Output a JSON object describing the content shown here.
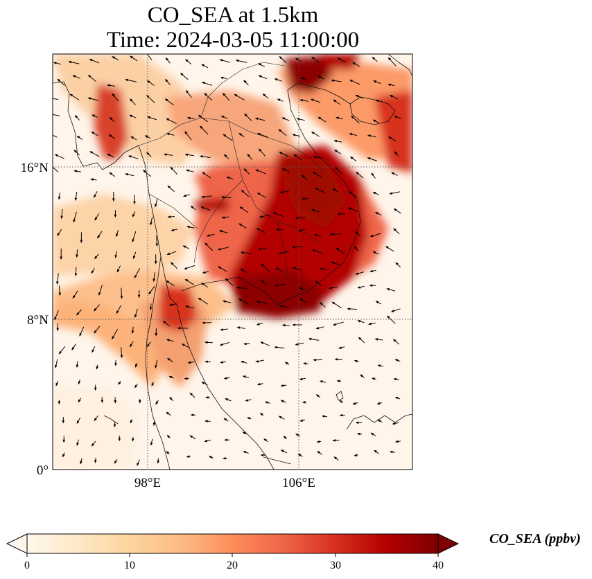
{
  "title": {
    "line1": "CO_SEA at 1.5km",
    "line2": "Time: 2024-03-05 11:00:00"
  },
  "map": {
    "projection": "PlateCarree",
    "lon_range": [
      93,
      112
    ],
    "lat_range": [
      0,
      22
    ],
    "gridlines": {
      "lons": [
        98,
        106
      ],
      "lats": [
        0,
        8,
        16
      ],
      "style": "dotted"
    },
    "lon_tick_labels": [
      "98°E",
      "106°E"
    ],
    "lat_tick_labels": [
      "0°",
      "8°N",
      "16°N"
    ],
    "field": "CO_SEA concentration at 1.5km",
    "wind_vectors": true,
    "coastlines": true,
    "borders": true
  },
  "colorbar": {
    "label": "CO_SEA (ppbv)",
    "colormap": "OrRd",
    "range": [
      0,
      40
    ],
    "extend": "both",
    "ticks": [
      "0",
      "10",
      "20",
      "30",
      "40"
    ],
    "colors": [
      "#fff7ec",
      "#fee8c8",
      "#fdd49e",
      "#fdbb84",
      "#fc8d59",
      "#ef6548",
      "#d7301f",
      "#b30000",
      "#7f0000"
    ]
  }
}
